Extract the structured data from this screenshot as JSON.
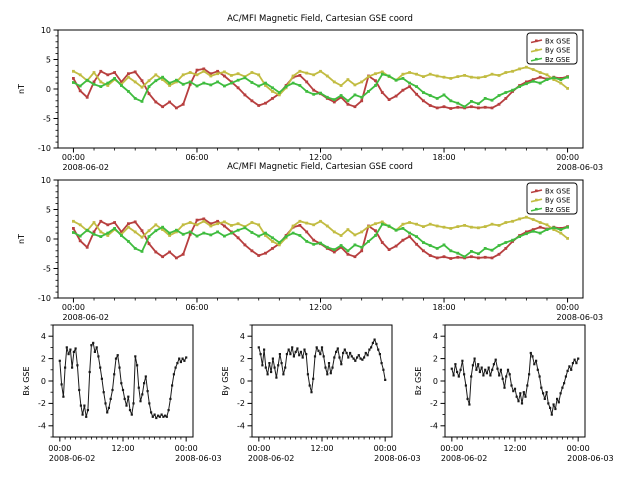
{
  "figure": {
    "background": "#ffffff",
    "axis_color": "#000000",
    "mono_trace_color": "#1a1a1a"
  },
  "chart_data": {
    "type": "line",
    "x_unit": "hours since 2008-06-02 00:00",
    "x_hours": [
      0,
      0.33,
      0.67,
      1,
      1.33,
      1.67,
      2,
      2.33,
      2.67,
      3,
      3.33,
      3.67,
      4,
      4.33,
      4.67,
      5,
      5.33,
      5.67,
      6,
      6.33,
      6.67,
      7,
      7.33,
      7.67,
      8,
      8.33,
      8.67,
      9,
      9.33,
      9.67,
      10,
      10.33,
      10.67,
      11,
      11.33,
      11.67,
      12,
      12.33,
      12.67,
      13,
      13.33,
      13.67,
      14,
      14.33,
      14.67,
      15,
      15.33,
      15.67,
      16,
      16.33,
      16.67,
      17,
      17.33,
      17.67,
      18,
      18.33,
      18.67,
      19,
      19.33,
      19.67,
      20,
      20.33,
      20.67,
      21,
      21.33,
      21.67,
      22,
      22.33,
      22.67,
      23,
      23.33,
      23.67,
      24
    ],
    "series": [
      {
        "key": "bx",
        "name": "Bx GSE",
        "color": "#b73f3f",
        "values": [
          1.8,
          -0.3,
          -1.4,
          1.2,
          3.0,
          2.4,
          2.8,
          1.2,
          2.6,
          2.9,
          1.4,
          -0.8,
          -2.2,
          -3.0,
          -2.2,
          -3.2,
          -2.6,
          0.8,
          3.2,
          3.4,
          2.6,
          3.0,
          2.2,
          1.2,
          0.2,
          -1.0,
          -2.0,
          -2.8,
          -2.4,
          -1.6,
          -0.8,
          0.6,
          2.0,
          2.3,
          1.2,
          -0.2,
          -0.8,
          -1.6,
          -2.2,
          -1.4,
          -2.6,
          -3.0,
          -2.0,
          2.2,
          1.4,
          -0.6,
          -1.8,
          -1.2,
          -0.2,
          0.4,
          -0.9,
          -2.0,
          -2.8,
          -3.2,
          -3.0,
          -3.3,
          -3.1,
          -3.2,
          -3.0,
          -3.2,
          -3.1,
          -3.2,
          -2.6,
          -1.6,
          -0.4,
          0.6,
          1.2,
          1.6,
          2.0,
          1.7,
          2.0,
          1.8,
          2.1
        ]
      },
      {
        "key": "by",
        "name": "By GSE",
        "color": "#c2bc42",
        "values": [
          3.0,
          2.4,
          1.4,
          2.8,
          1.2,
          0.6,
          1.6,
          0.8,
          2.0,
          1.2,
          0.3,
          1.4,
          2.4,
          1.6,
          0.6,
          1.2,
          2.4,
          2.8,
          2.4,
          3.0,
          2.2,
          2.6,
          2.9,
          2.3,
          2.6,
          2.1,
          2.8,
          2.4,
          0.6,
          -0.4,
          -1.0,
          0.2,
          2.2,
          3.0,
          2.7,
          2.4,
          3.0,
          2.2,
          1.2,
          0.6,
          1.6,
          0.7,
          1.2,
          2.1,
          2.6,
          2.9,
          2.1,
          1.5,
          2.5,
          2.8,
          2.5,
          2.1,
          2.5,
          2.2,
          2.0,
          1.8,
          2.1,
          2.3,
          2.0,
          1.9,
          2.1,
          2.5,
          2.3,
          2.8,
          3.0,
          3.4,
          3.7,
          3.3,
          2.8,
          2.4,
          1.6,
          1.0,
          0.1
        ]
      },
      {
        "key": "bz",
        "name": "Bz GSE",
        "color": "#3fbc3f",
        "values": [
          1.1,
          0.5,
          1.5,
          0.8,
          0.4,
          1.0,
          1.8,
          0.6,
          -0.4,
          -1.6,
          -2.1,
          0.4,
          1.4,
          2.0,
          1.0,
          1.5,
          0.8,
          1.2,
          0.5,
          1.0,
          0.7,
          1.2,
          0.5,
          1.0,
          1.5,
          1.9,
          1.1,
          0.5,
          1.0,
          0.2,
          -0.6,
          0.4,
          1.0,
          0.6,
          -0.4,
          -0.9,
          -0.7,
          -1.4,
          -1.8,
          -1.1,
          -2.0,
          -1.0,
          -1.4,
          -0.4,
          0.6,
          2.5,
          2.2,
          1.5,
          1.8,
          1.0,
          0.4,
          -0.6,
          -1.1,
          -1.6,
          -1.0,
          -2.0,
          -2.4,
          -3.0,
          -2.1,
          -2.5,
          -1.6,
          -1.9,
          -1.1,
          -0.6,
          -0.2,
          0.4,
          0.9,
          1.3,
          1.0,
          1.6,
          1.9,
          1.6,
          2.0
        ]
      }
    ],
    "panels": [
      {
        "id": "overview-top",
        "title": "AC/MFI Magnetic Field, Cartesian GSE coord",
        "ylabel": "nT",
        "ylim": [
          -10,
          10
        ],
        "yticks": [
          -10,
          -5,
          0,
          5,
          10
        ],
        "y_minor_step": 1,
        "xticks": [
          {
            "hour": 0,
            "label": "00:00",
            "date": "2008-06-02"
          },
          {
            "hour": 6,
            "label": "06:00"
          },
          {
            "hour": 12,
            "label": "12:00"
          },
          {
            "hour": 18,
            "label": "18:00"
          },
          {
            "hour": 24,
            "label": "00:00",
            "date": "2008-06-03"
          }
        ],
        "x_minor_step": 1,
        "x_pad_hours": 0.75,
        "series": [
          "bx",
          "by",
          "bz"
        ],
        "legend": true
      },
      {
        "id": "overview-bottom",
        "title": "AC/MFI Magnetic Field, Cartesian GSE coord",
        "ylabel": "nT",
        "ylim": [
          -10,
          10
        ],
        "yticks": [
          -10,
          -5,
          0,
          5,
          10
        ],
        "y_minor_step": 1,
        "xticks": [
          {
            "hour": 0,
            "label": "00:00",
            "date": "2008-06-02"
          },
          {
            "hour": 6,
            "label": "06:00"
          },
          {
            "hour": 12,
            "label": "12:00"
          },
          {
            "hour": 18,
            "label": "18:00"
          },
          {
            "hour": 24,
            "label": "00:00",
            "date": "2008-06-03"
          }
        ],
        "x_minor_step": 1,
        "x_pad_hours": 0.75,
        "series": [
          "bx",
          "by",
          "bz"
        ],
        "legend": true
      },
      {
        "id": "bx-detail",
        "ylabel": "Bx GSE",
        "ylim": [
          -5,
          5
        ],
        "yticks": [
          -4,
          -2,
          0,
          2,
          4
        ],
        "y_minor_step": 1,
        "xticks": [
          {
            "hour": 0,
            "label": "00:00",
            "date": "2008-06-02"
          },
          {
            "hour": 12,
            "label": "12:00"
          },
          {
            "hour": 24,
            "label": "00:00",
            "date": "2008-06-03"
          }
        ],
        "x_minor_step": 1,
        "x_pad_hours": 1.3,
        "series": [
          "bx"
        ],
        "monochrome": true,
        "legend": false
      },
      {
        "id": "by-detail",
        "ylabel": "By GSE",
        "ylim": [
          -5,
          5
        ],
        "yticks": [
          -4,
          -2,
          0,
          2,
          4
        ],
        "y_minor_step": 1,
        "xticks": [
          {
            "hour": 0,
            "label": "00:00",
            "date": "2008-06-02"
          },
          {
            "hour": 12,
            "label": "12:00"
          },
          {
            "hour": 24,
            "label": "00:00",
            "date": "2008-06-03"
          }
        ],
        "x_minor_step": 1,
        "x_pad_hours": 1.3,
        "series": [
          "by"
        ],
        "monochrome": true,
        "legend": false
      },
      {
        "id": "bz-detail",
        "ylabel": "Bz GSE",
        "ylim": [
          -5,
          5
        ],
        "yticks": [
          -4,
          -2,
          0,
          2,
          4
        ],
        "y_minor_step": 1,
        "xticks": [
          {
            "hour": 0,
            "label": "00:00",
            "date": "2008-06-02"
          },
          {
            "hour": 12,
            "label": "12:00"
          },
          {
            "hour": 24,
            "label": "00:00",
            "date": "2008-06-03"
          }
        ],
        "x_minor_step": 1,
        "x_pad_hours": 1.3,
        "series": [
          "bz"
        ],
        "monochrome": true,
        "legend": false
      }
    ],
    "legend_position": "upper right",
    "grid": false
  }
}
